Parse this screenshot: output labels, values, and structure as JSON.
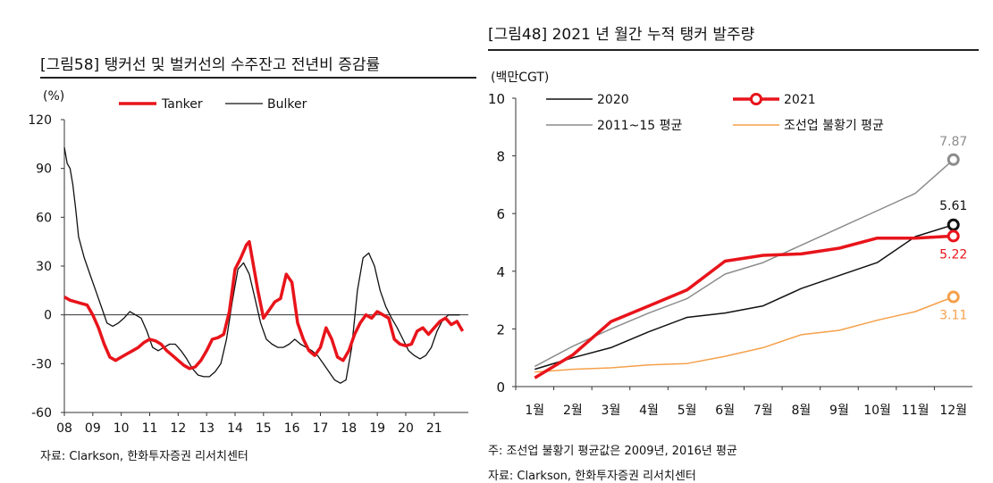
{
  "left": {
    "title": "[그림58]  탱커선 및 벌커선의 수주잔고 전년비 증감률",
    "source": "자료: Clarkson, 한화투자증권 리서치센터",
    "chart_data": {
      "type": "line",
      "title": "탱커선 및 벌커선의 수주잔고 전년비 증감률",
      "ylabel": "(%)",
      "ylim": [
        -60,
        120
      ],
      "xlim": [
        2008,
        2022.2
      ],
      "yticks": [
        120,
        90,
        60,
        30,
        0,
        -30,
        -60
      ],
      "xtick_labels": [
        "08",
        "09",
        "10",
        "11",
        "12",
        "13",
        "14",
        "15",
        "16",
        "17",
        "18",
        "19",
        "20",
        "21"
      ],
      "xtick_values": [
        2008,
        2009,
        2010,
        2011,
        2012,
        2013,
        2014,
        2015,
        2016,
        2017,
        2018,
        2019,
        2020,
        2021
      ],
      "series": [
        {
          "name": "Tanker",
          "color": "#e8141b",
          "width": 3.5,
          "x": [
            2008.0,
            2008.2,
            2008.4,
            2008.6,
            2008.8,
            2009.0,
            2009.2,
            2009.4,
            2009.6,
            2009.8,
            2010.0,
            2010.2,
            2010.4,
            2010.6,
            2010.8,
            2011.0,
            2011.2,
            2011.4,
            2011.6,
            2011.8,
            2012.0,
            2012.2,
            2012.4,
            2012.6,
            2012.8,
            2013.0,
            2013.2,
            2013.4,
            2013.6,
            2013.8,
            2014.0,
            2014.2,
            2014.4,
            2014.5,
            2014.6,
            2014.8,
            2015.0,
            2015.2,
            2015.4,
            2015.6,
            2015.8,
            2016.0,
            2016.2,
            2016.4,
            2016.6,
            2016.8,
            2017.0,
            2017.2,
            2017.4,
            2017.6,
            2017.8,
            2018.0,
            2018.2,
            2018.4,
            2018.6,
            2018.8,
            2019.0,
            2019.2,
            2019.4,
            2019.6,
            2019.8,
            2020.0,
            2020.2,
            2020.4,
            2020.6,
            2020.8,
            2021.0,
            2021.2,
            2021.4,
            2021.6,
            2021.8,
            2022.0
          ],
          "y": [
            11,
            9,
            8,
            7,
            6,
            0,
            -8,
            -18,
            -26,
            -28,
            -26,
            -24,
            -22,
            -20,
            -17,
            -15,
            -16,
            -18,
            -22,
            -25,
            -28,
            -31,
            -33,
            -32,
            -28,
            -22,
            -15,
            -14,
            -12,
            2,
            28,
            35,
            43,
            45,
            35,
            15,
            -2,
            3,
            8,
            10,
            25,
            20,
            -5,
            -15,
            -22,
            -25,
            -20,
            -8,
            -15,
            -26,
            -28,
            -22,
            -12,
            -5,
            0,
            -2,
            2,
            0,
            -2,
            -15,
            -18,
            -19,
            -18,
            -10,
            -8,
            -12,
            -8,
            -4,
            -2,
            -6,
            -4,
            -10
          ]
        },
        {
          "name": "Bulker",
          "color": "#111111",
          "width": 1.3,
          "x": [
            2008.0,
            2008.1,
            2008.2,
            2008.3,
            2008.4,
            2008.5,
            2008.7,
            2008.9,
            2009.1,
            2009.3,
            2009.5,
            2009.7,
            2009.9,
            2010.1,
            2010.3,
            2010.5,
            2010.7,
            2010.9,
            2011.1,
            2011.3,
            2011.5,
            2011.7,
            2011.9,
            2012.1,
            2012.3,
            2012.5,
            2012.7,
            2012.9,
            2013.1,
            2013.3,
            2013.5,
            2013.7,
            2013.9,
            2014.1,
            2014.3,
            2014.5,
            2014.7,
            2014.9,
            2015.1,
            2015.3,
            2015.5,
            2015.7,
            2015.9,
            2016.1,
            2016.3,
            2016.5,
            2016.7,
            2016.9,
            2017.1,
            2017.3,
            2017.5,
            2017.7,
            2017.9,
            2018.1,
            2018.3,
            2018.5,
            2018.7,
            2018.9,
            2019.1,
            2019.3,
            2019.5,
            2019.7,
            2019.9,
            2020.1,
            2020.3,
            2020.5,
            2020.7,
            2020.9,
            2021.1,
            2021.3,
            2021.5,
            2021.7,
            2021.9
          ],
          "y": [
            103,
            93,
            90,
            80,
            65,
            48,
            35,
            25,
            15,
            5,
            -5,
            -7,
            -5,
            -2,
            2,
            0,
            -2,
            -10,
            -20,
            -22,
            -20,
            -18,
            -18,
            -22,
            -27,
            -33,
            -37,
            -38,
            -38,
            -35,
            -30,
            -15,
            8,
            28,
            32,
            25,
            10,
            -5,
            -15,
            -18,
            -20,
            -20,
            -18,
            -15,
            -18,
            -20,
            -22,
            -25,
            -30,
            -35,
            -40,
            -42,
            -40,
            -20,
            15,
            35,
            38,
            30,
            15,
            5,
            -2,
            -8,
            -15,
            -22,
            -25,
            -27,
            -25,
            -20,
            -10,
            -3,
            0,
            0,
            0
          ]
        }
      ],
      "legend": [
        "Tanker",
        "Bulker"
      ]
    }
  },
  "right": {
    "title": "[그림48]  2021 년 월간 누적 탱커 발주량",
    "footnote": "주: 조선업 불황기 평균값은 2009년, 2016년 평균",
    "source": "자료: Clarkson, 한화투자증권 리서치센터",
    "chart_data": {
      "type": "line",
      "title": "2021 년 월간 누적 탱커 발주량",
      "ylabel": "(백만CGT)",
      "ylim": [
        0,
        10
      ],
      "yticks": [
        0,
        2,
        4,
        6,
        8,
        10
      ],
      "categories": [
        "1월",
        "2월",
        "3월",
        "4월",
        "5월",
        "6월",
        "7월",
        "8월",
        "9월",
        "10월",
        "11월",
        "12월"
      ],
      "series": [
        {
          "name": "2021",
          "color": "#e8141b",
          "width": 3.5,
          "marker": true,
          "end_label": "5.22",
          "values": [
            0.3,
            1.1,
            2.25,
            2.8,
            3.35,
            4.35,
            4.55,
            4.6,
            4.8,
            5.15,
            5.15,
            5.22
          ]
        },
        {
          "name": "2020",
          "color": "#111111",
          "width": 1.5,
          "marker": true,
          "end_label": "5.61",
          "values": [
            0.6,
            1.0,
            1.35,
            1.9,
            2.4,
            2.55,
            2.8,
            3.4,
            3.85,
            4.3,
            5.2,
            5.61
          ]
        },
        {
          "name": "2011~15 평균",
          "color": "#8c8c8c",
          "width": 1.5,
          "marker": true,
          "end_label": "7.87",
          "values": [
            0.7,
            1.4,
            2.0,
            2.55,
            3.05,
            3.9,
            4.3,
            4.9,
            5.5,
            6.1,
            6.7,
            7.87
          ]
        },
        {
          "name": "조선업 불황기 평균",
          "color": "#f5a04a",
          "width": 1.5,
          "marker": true,
          "end_label": "3.11",
          "values": [
            0.5,
            0.6,
            0.65,
            0.75,
            0.8,
            1.05,
            1.35,
            1.8,
            1.95,
            2.3,
            2.6,
            3.11
          ]
        }
      ],
      "legend": [
        "2020",
        "2021",
        "2011~15 평균",
        "조선업 불황기 평균"
      ]
    }
  }
}
